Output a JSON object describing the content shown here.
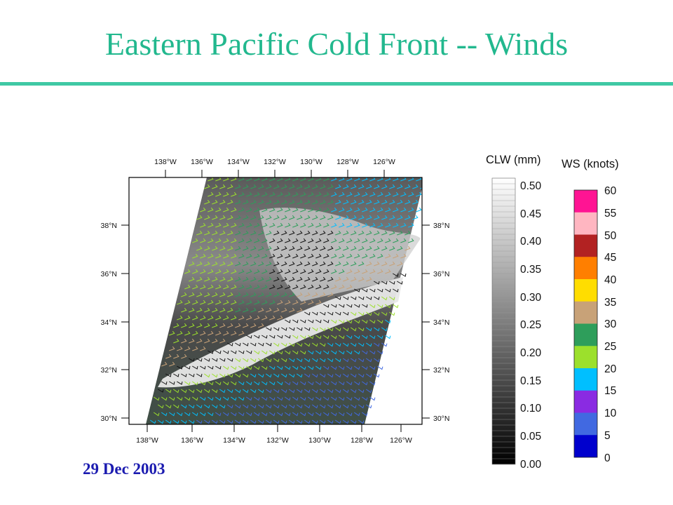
{
  "slide": {
    "title": "Eastern Pacific Cold Front -- Winds",
    "date": "29 Dec 2003"
  },
  "map": {
    "longitude_labels": [
      "138°W",
      "136°W",
      "134°W",
      "132°W",
      "130°W",
      "128°W",
      "126°W"
    ],
    "latitude_labels": [
      "38°N",
      "36°N",
      "34°N",
      "32°N",
      "30°N"
    ]
  },
  "legend": {
    "clw": {
      "title": "CLW (mm)",
      "ticks": [
        "0.50",
        "0.45",
        "0.40",
        "0.35",
        "0.30",
        "0.25",
        "0.20",
        "0.15",
        "0.10",
        "0.05",
        "0.00"
      ]
    },
    "ws": {
      "title": "WS (knots)",
      "ticks": [
        "60",
        "55",
        "50",
        "45",
        "40",
        "35",
        "30",
        "25",
        "20",
        "15",
        "10",
        "5",
        "0"
      ],
      "colors": [
        "#ff1493",
        "#ffb6c1",
        "#b22222",
        "#ff7f00",
        "#ffdd00",
        "#c8a278",
        "#2e9e5b",
        "#9ce02c",
        "#00bfff",
        "#8a2be2",
        "#4169e1",
        "#0000cd"
      ]
    }
  }
}
